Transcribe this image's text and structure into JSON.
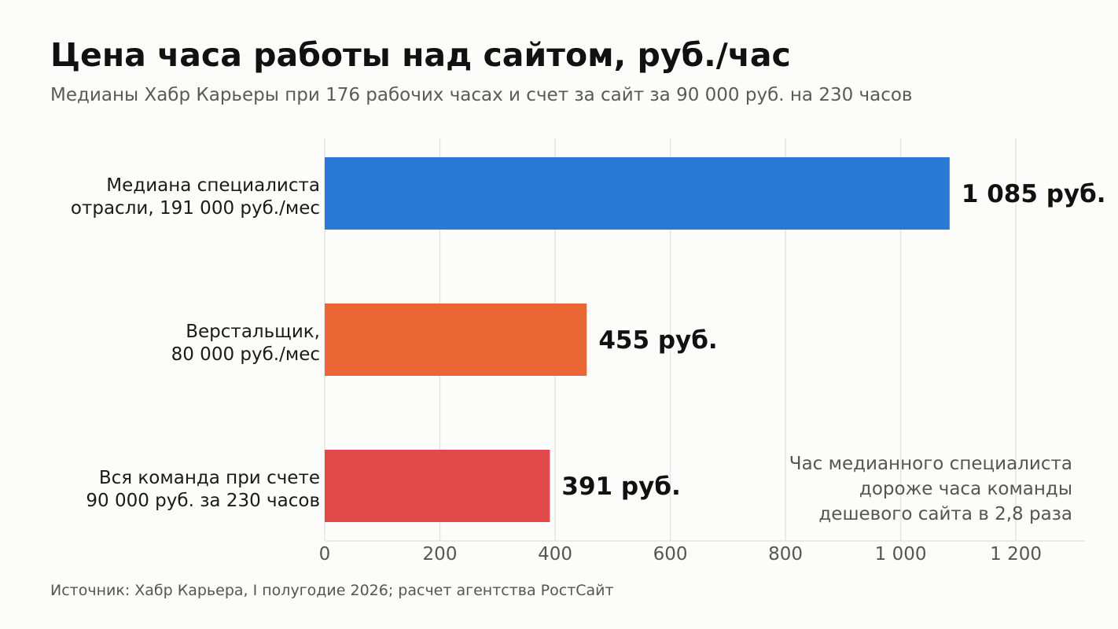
{
  "title": "Цена часа работы над сайтом, руб./час",
  "subtitle": "Медианы Хабр Карьеры при 176 рабочих часах и счет за сайт за 90 000 руб. на 230 часов",
  "source": "Источник: Хабр Карьера, I полугодие 2026; расчет агентства РостСайт",
  "chart_data": {
    "type": "bar",
    "orientation": "horizontal",
    "categories": [
      [
        "Медиана специалиста",
        "отрасли, 191 000 руб./мес"
      ],
      [
        "Верстальщик,",
        "80 000 руб./мес"
      ],
      [
        "Вся команда при счете",
        "90 000 руб. за 230 часов"
      ]
    ],
    "values": [
      1085,
      455,
      391
    ],
    "value_labels": [
      "1 085 руб.",
      "455 руб.",
      "391 руб."
    ],
    "colors": [
      "#2979d5",
      "#ea6735",
      "#e2494b"
    ],
    "xlim": [
      0,
      1320
    ],
    "xticks": [
      0,
      200,
      400,
      600,
      800,
      1000,
      1200
    ],
    "xtick_labels": [
      "0",
      "200",
      "400",
      "600",
      "800",
      "1 000",
      "1 200"
    ],
    "grid": true,
    "annotation": [
      "Час медианного специалиста",
      "дороже часа команды",
      "дешевого сайта в 2,8 раза"
    ]
  }
}
